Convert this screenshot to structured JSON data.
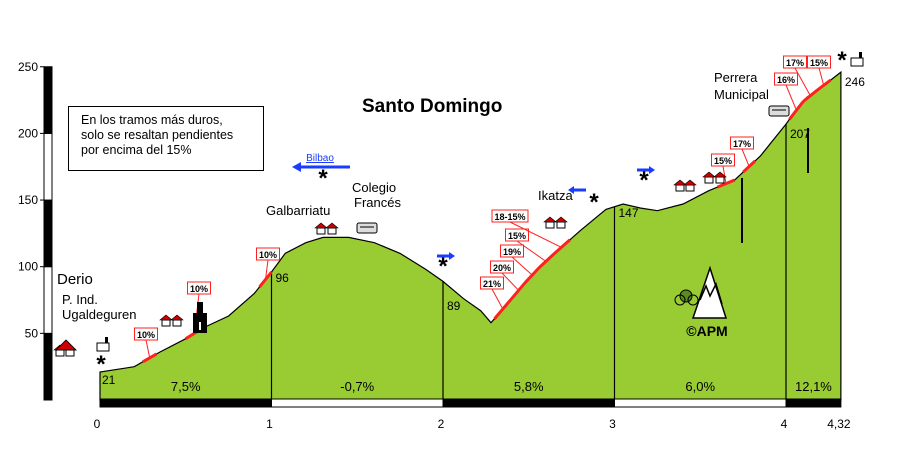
{
  "chart_data": {
    "type": "area",
    "title": "Santo Domingo",
    "xlabel": "",
    "ylabel": "",
    "xlim": [
      0,
      4.32
    ],
    "ylim": [
      0,
      250
    ],
    "y_ticks": [
      "50",
      "100",
      "150",
      "200",
      "250"
    ],
    "x_ticks": [
      {
        "x": 0,
        "label": "0"
      },
      {
        "x": 1,
        "label": "1"
      },
      {
        "x": 2,
        "label": "2"
      },
      {
        "x": 3,
        "label": "3"
      },
      {
        "x": 4,
        "label": "4"
      },
      {
        "x": 4.32,
        "label": "4,32"
      }
    ],
    "profile": [
      [
        0,
        21
      ],
      [
        0.2,
        25
      ],
      [
        0.35,
        36
      ],
      [
        0.5,
        46
      ],
      [
        0.6,
        54
      ],
      [
        0.75,
        63
      ],
      [
        0.9,
        80
      ],
      [
        1.0,
        96
      ],
      [
        1.08,
        110
      ],
      [
        1.2,
        118
      ],
      [
        1.3,
        122
      ],
      [
        1.45,
        122
      ],
      [
        1.6,
        118
      ],
      [
        1.75,
        110
      ],
      [
        1.9,
        98
      ],
      [
        2.0,
        89
      ],
      [
        2.12,
        76
      ],
      [
        2.22,
        67
      ],
      [
        2.28,
        58
      ],
      [
        2.35,
        68
      ],
      [
        2.45,
        84
      ],
      [
        2.55,
        98
      ],
      [
        2.65,
        110
      ],
      [
        2.8,
        127
      ],
      [
        2.95,
        143
      ],
      [
        3.05,
        147
      ],
      [
        3.15,
        144
      ],
      [
        3.25,
        142
      ],
      [
        3.4,
        147
      ],
      [
        3.55,
        157
      ],
      [
        3.7,
        165
      ],
      [
        3.85,
        183
      ],
      [
        4.0,
        207
      ],
      [
        4.05,
        216
      ],
      [
        4.12,
        227
      ],
      [
        4.2,
        234
      ],
      [
        4.32,
        246
      ]
    ],
    "elevation_labels": [
      {
        "x": 0,
        "y": 21,
        "text": "21"
      },
      {
        "x": 1,
        "y": 96,
        "text": "96"
      },
      {
        "x": 2,
        "y": 89,
        "text": "89"
      },
      {
        "x": 3,
        "y": 147,
        "text": "147"
      },
      {
        "x": 4,
        "y": 207,
        "text": "207"
      },
      {
        "x": 4.32,
        "y": 246,
        "text": "246"
      }
    ],
    "segments": [
      {
        "from": 0,
        "to": 1,
        "grade": "7,5%"
      },
      {
        "from": 1,
        "to": 2,
        "grade": "-0,7%"
      },
      {
        "from": 2,
        "to": 3,
        "grade": "5,8%"
      },
      {
        "from": 3,
        "to": 4,
        "grade": "6,0%"
      },
      {
        "from": 4,
        "to": 4.32,
        "grade": "12,1%"
      }
    ],
    "steep_sections": [
      {
        "from": 0.25,
        "to": 0.33,
        "label": "10%"
      },
      {
        "from": 0.5,
        "to": 0.6,
        "label": "10%"
      },
      {
        "from": 0.93,
        "to": 1.0,
        "label": "10%"
      },
      {
        "from": 2.3,
        "to": 2.4,
        "label": "21%"
      },
      {
        "from": 2.4,
        "to": 2.48,
        "label": "20%"
      },
      {
        "from": 2.48,
        "to": 2.56,
        "label": "19%"
      },
      {
        "from": 2.56,
        "to": 2.64,
        "label": "15%"
      },
      {
        "from": 2.64,
        "to": 2.74,
        "label": "18-15%"
      },
      {
        "from": 3.6,
        "to": 3.7,
        "label": "15%"
      },
      {
        "from": 3.75,
        "to": 3.82,
        "label": "17%"
      },
      {
        "from": 4.02,
        "to": 4.1,
        "label": "16%"
      },
      {
        "from": 4.1,
        "to": 4.18,
        "label": "17%"
      },
      {
        "from": 4.18,
        "to": 4.26,
        "label": "15%"
      }
    ],
    "places": [
      {
        "key": "derio",
        "text": "Derio"
      },
      {
        "key": "pind",
        "text": "P. Ind."
      },
      {
        "key": "ugaldeguren",
        "text": "Ugaldeguren"
      },
      {
        "key": "galbarriatu",
        "text": "Galbarriatu"
      },
      {
        "key": "colegio1",
        "text": "Colegio"
      },
      {
        "key": "colegio2",
        "text": "Francés"
      },
      {
        "key": "ikatza",
        "text": "Ikatza"
      },
      {
        "key": "perrera1",
        "text": "Perrera"
      },
      {
        "key": "perrera2",
        "text": "Municipal"
      }
    ],
    "direction_bilbao": "Bilbao",
    "watermark": "©APM",
    "grid": false,
    "legend": "none",
    "colors": {
      "fill": "#99cc33",
      "steep": "#ff2020",
      "ruler": "#000000"
    }
  },
  "note": {
    "line1": "En los tramos más duros,",
    "line2": "solo se resaltan pendientes",
    "line3": "por encima del 15%"
  }
}
